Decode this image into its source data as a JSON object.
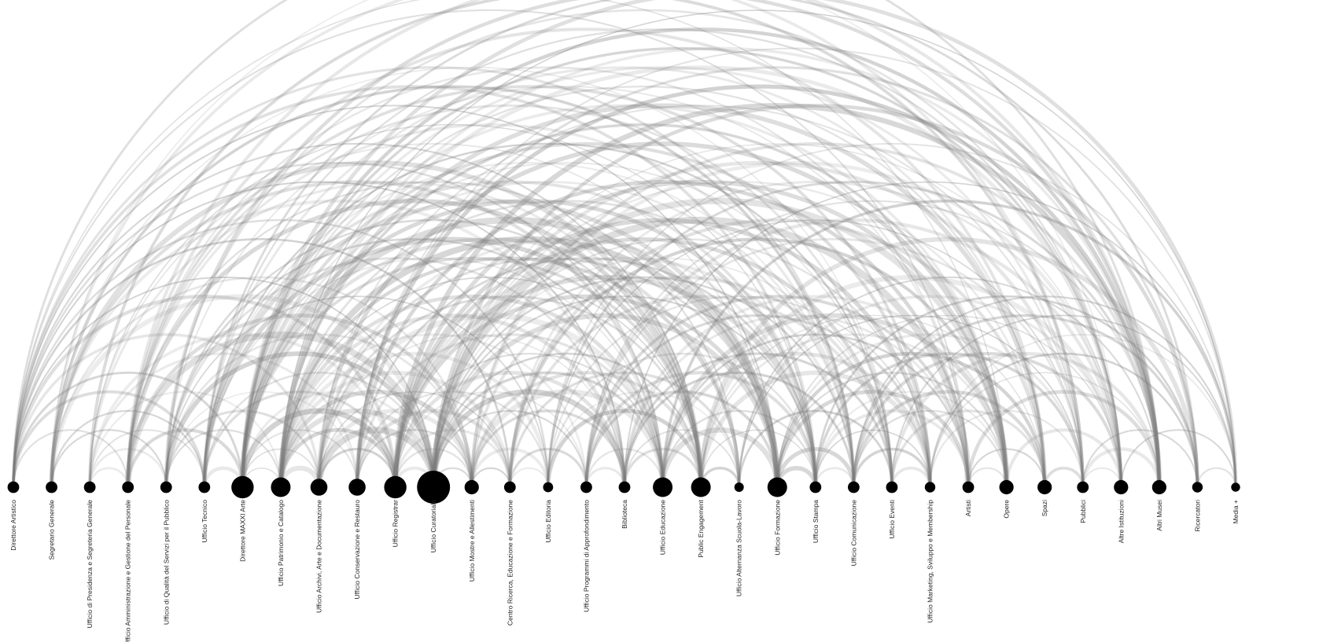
{
  "nodes": [
    {
      "id": "n01",
      "label": "Direttore Artistico",
      "weight": 1
    },
    {
      "id": "n02",
      "label": "Segretario Generale",
      "weight": 1
    },
    {
      "id": "n03",
      "label": "Ufficio di Presidenza e Segreteria Generale",
      "weight": 1
    },
    {
      "id": "n04",
      "label": "Ufficio Amministrazione e Gestione del Personale",
      "weight": 1
    },
    {
      "id": "n05",
      "label": "Ufficio di Qualità del Servizi per il Pubblico",
      "weight": 1
    },
    {
      "id": "n06",
      "label": "Ufficio Tecnico",
      "weight": 1
    },
    {
      "id": "n07",
      "label": "Direttore MAXXI Arte",
      "weight": 3
    },
    {
      "id": "n08",
      "label": "Ufficio Patrimonio e Catalogo",
      "weight": 2.5
    },
    {
      "id": "n09",
      "label": "Ufficio Archivi, Arte e Documentazione",
      "weight": 2
    },
    {
      "id": "n10",
      "label": "Ufficio Conservazione e Restauro",
      "weight": 2
    },
    {
      "id": "n11",
      "label": "Ufficio Registrar",
      "weight": 3
    },
    {
      "id": "n12",
      "label": "Ufficio Curatoriale",
      "weight": 5
    },
    {
      "id": "n13",
      "label": "Ufficio Mostre e Allestimenti",
      "weight": 1.5
    },
    {
      "id": "n14",
      "label": "Centro Ricerca, Educazione e Formazione",
      "weight": 1
    },
    {
      "id": "n15",
      "label": "Ufficio Editoria",
      "weight": 0.7
    },
    {
      "id": "n16",
      "label": "Ufficio Programmi di Approfondimento",
      "weight": 1
    },
    {
      "id": "n17",
      "label": "Biblioteca",
      "weight": 1
    },
    {
      "id": "n18",
      "label": "Ufficio Educazione",
      "weight": 2.5
    },
    {
      "id": "n19",
      "label": "Public Engagement",
      "weight": 2.5
    },
    {
      "id": "n20",
      "label": "Ufficio Alternanza Scuola-Lavoro",
      "weight": 0.6
    },
    {
      "id": "n21",
      "label": "Ufficio Formazione",
      "weight": 2.5
    },
    {
      "id": "n22",
      "label": "Ufficio Stampa",
      "weight": 1
    },
    {
      "id": "n23",
      "label": "Ufficio Comunicazione",
      "weight": 1
    },
    {
      "id": "n24",
      "label": "Ufficio Eventi",
      "weight": 1
    },
    {
      "id": "n25",
      "label": "Ufficio Marketing, Sviluppo e Membership",
      "weight": 0.8
    },
    {
      "id": "n26",
      "label": "Artisti",
      "weight": 1
    },
    {
      "id": "n27",
      "label": "Opere",
      "weight": 1.5
    },
    {
      "id": "n28",
      "label": "Spazi",
      "weight": 1.5
    },
    {
      "id": "n29",
      "label": "Pubblici",
      "weight": 1
    },
    {
      "id": "n30",
      "label": "Altre Istituzioni",
      "weight": 1.5
    },
    {
      "id": "n31",
      "label": "Altri Musei",
      "weight": 1.5
    },
    {
      "id": "n32",
      "label": "Ricercatori",
      "weight": 0.8
    },
    {
      "id": "n33",
      "label": "Media +",
      "weight": 0.5
    }
  ],
  "colors": {
    "node": "#000000",
    "arc": "#7a7a7a",
    "label": "#222222",
    "background": "#ffffff"
  }
}
